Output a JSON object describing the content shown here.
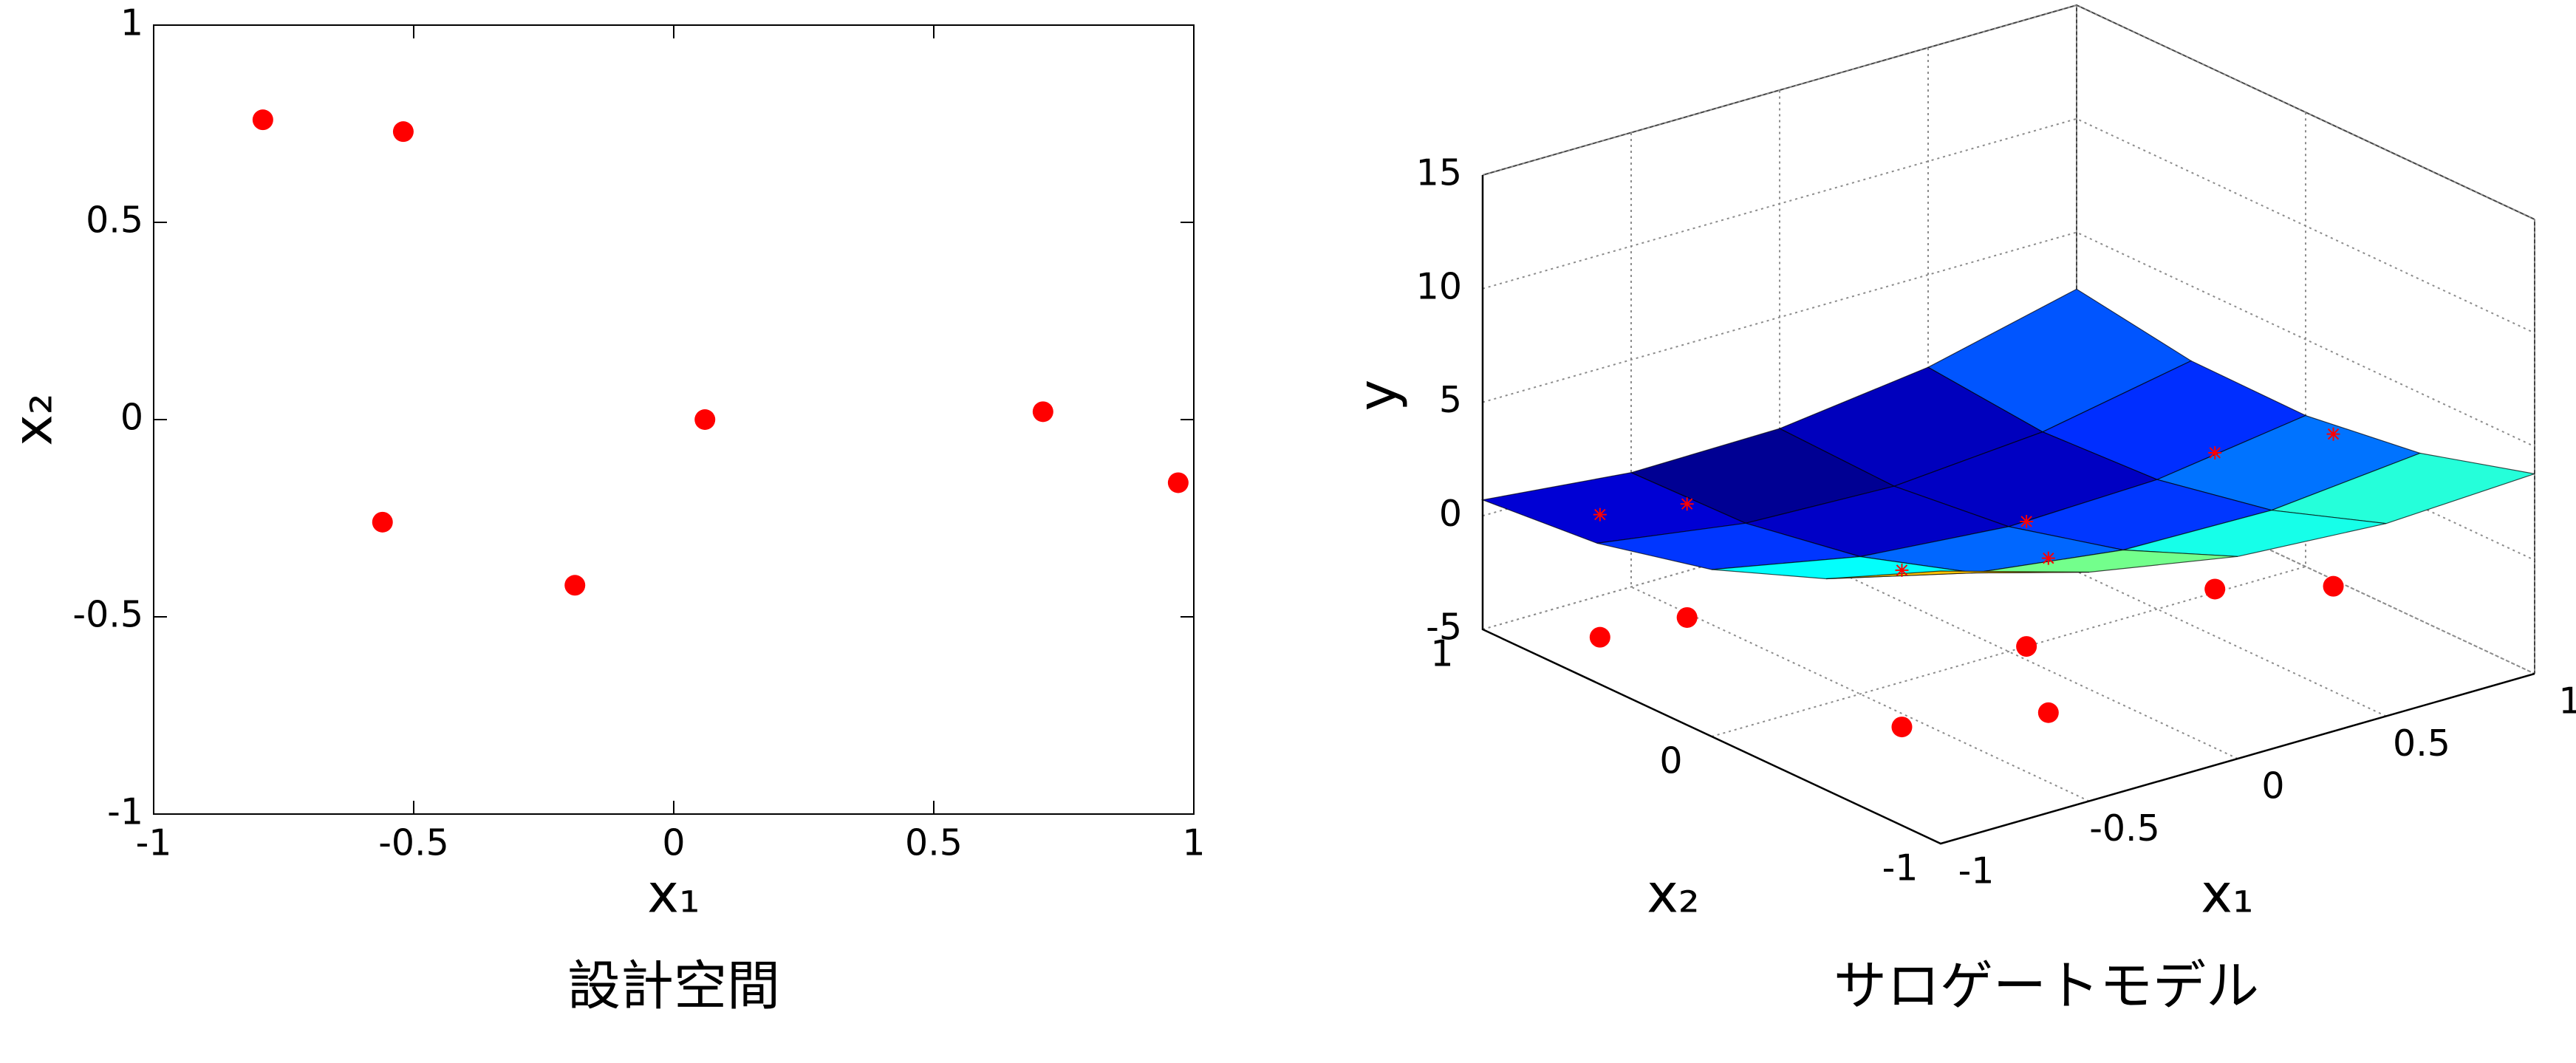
{
  "chart_data": [
    {
      "type": "scatter",
      "x": [
        -0.79,
        -0.52,
        -0.56,
        -0.19,
        0.06,
        0.71,
        0.97
      ],
      "y": [
        0.76,
        0.73,
        -0.26,
        -0.42,
        0.0,
        0.02,
        -0.16
      ],
      "color": "#ff0000",
      "xlim": [
        -1,
        1
      ],
      "ylim": [
        -1,
        1
      ],
      "xticks": [
        -1,
        -0.5,
        0,
        0.5,
        1
      ],
      "yticks": [
        -1,
        -0.5,
        0,
        0.5,
        1
      ],
      "xlabel": "x₁",
      "ylabel": "x₂",
      "caption": "設計空間"
    },
    {
      "type": "surface3d",
      "x1": [
        -1,
        -0.5,
        0,
        0.5,
        1
      ],
      "x2": [
        -1,
        -0.5,
        0,
        0.5,
        1
      ],
      "z": [
        [
          7.0,
          5.08,
          3.9,
          3.48,
          3.8
        ],
        [
          4.3,
          2.69,
          1.83,
          1.71,
          2.35
        ],
        [
          2.35,
          1.05,
          0.5,
          0.7,
          1.65
        ],
        [
          1.15,
          0.16,
          -0.08,
          0.44,
          1.7
        ],
        [
          0.7,
          0.03,
          0.1,
          0.93,
          2.5
        ]
      ],
      "samples_x1": [
        -0.79,
        -0.52,
        -0.56,
        -0.19,
        0.06,
        0.71,
        0.97
      ],
      "samples_x2": [
        0.76,
        0.73,
        -0.26,
        -0.42,
        0.0,
        0.02,
        -0.16
      ],
      "samples_y": [
        0.4,
        0.0,
        1.9,
        1.8,
        0.5,
        1.0,
        1.7
      ],
      "color": "#ff0000",
      "xlim": [
        -1,
        1
      ],
      "ylim": [
        -1,
        1
      ],
      "zlim": [
        -5,
        15
      ],
      "xticks": [
        -1,
        -0.5,
        0,
        0.5,
        1
      ],
      "yticks": [
        -1,
        0,
        1
      ],
      "zticks": [
        -5,
        0,
        5,
        10,
        15
      ],
      "xlabel": "x₁",
      "ylabel": "x₂",
      "zlabel": "y",
      "caption": "サロゲートモデル"
    }
  ]
}
